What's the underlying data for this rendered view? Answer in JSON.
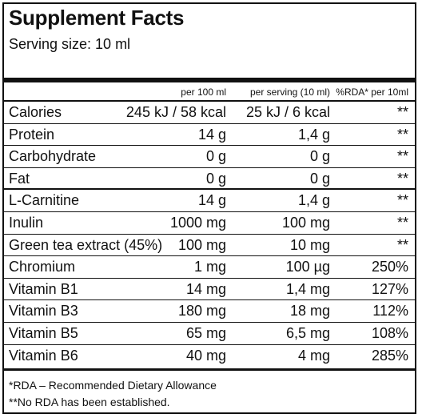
{
  "title": "Supplement Facts",
  "serving_size": "Serving size: 10 ml",
  "columns": {
    "per100": "per 100 ml",
    "per_serving": "per serving (10 ml)",
    "rda": "%RDA* per 10ml"
  },
  "rows": [
    {
      "name": "Calories",
      "per100": "245 kJ / 58 kcal",
      "per_serving": "25 kJ / 6 kcal",
      "rda": "**"
    },
    {
      "name": "Protein",
      "per100": "14 g",
      "per_serving": "1,4 g",
      "rda": "**"
    },
    {
      "name": "Carbohydrate",
      "per100": "0 g",
      "per_serving": "0 g",
      "rda": "**"
    },
    {
      "name": "Fat",
      "per100": "0 g",
      "per_serving": "0 g",
      "rda": "**"
    },
    {
      "name": "L-Carnitine",
      "per100": "14 g",
      "per_serving": "1,4 g",
      "rda": "**"
    },
    {
      "name": "Inulin",
      "per100": "1000 mg",
      "per_serving": "100 mg",
      "rda": "**"
    },
    {
      "name": "Green tea extract (45%)",
      "per100": "100 mg",
      "per_serving": "10 mg",
      "rda": "**"
    },
    {
      "name": "Chromium",
      "per100": "1 mg",
      "per_serving": "100 µg",
      "rda": "250%"
    },
    {
      "name": "Vitamin B1",
      "per100": "14 mg",
      "per_serving": "1,4 mg",
      "rda": "127%"
    },
    {
      "name": "Vitamin B3",
      "per100": "180 mg",
      "per_serving": "18 mg",
      "rda": "112%"
    },
    {
      "name": "Vitamin B5",
      "per100": "65 mg",
      "per_serving": "6,5 mg",
      "rda": "108%"
    },
    {
      "name": "Vitamin B6",
      "per100": "40 mg",
      "per_serving": "4 mg",
      "rda": "285%"
    }
  ],
  "footnotes": [
    "*RDA – Recommended Dietary Allowance",
    "**No RDA has been established."
  ]
}
